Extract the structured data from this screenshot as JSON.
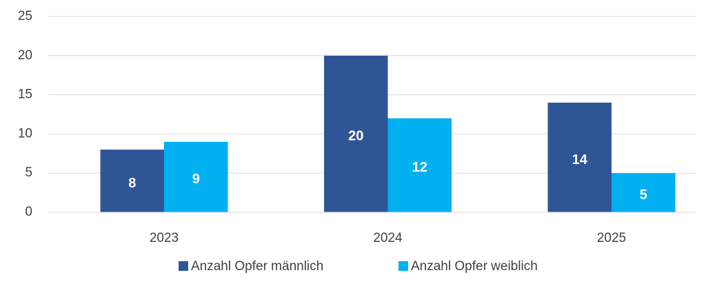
{
  "chart_data": {
    "type": "bar",
    "categories": [
      "2023",
      "2024",
      "2025"
    ],
    "series": [
      {
        "name": "Anzahl Opfer männlich",
        "color": "#2f5597",
        "values": [
          8,
          20,
          14
        ]
      },
      {
        "name": "Anzahl Opfer weiblich",
        "color": "#00b0f0",
        "values": [
          9,
          12,
          5
        ]
      }
    ],
    "ylim": [
      0,
      25
    ],
    "yticks": [
      0,
      5,
      10,
      15,
      20,
      25
    ],
    "grid": true,
    "legend": "bottom"
  }
}
